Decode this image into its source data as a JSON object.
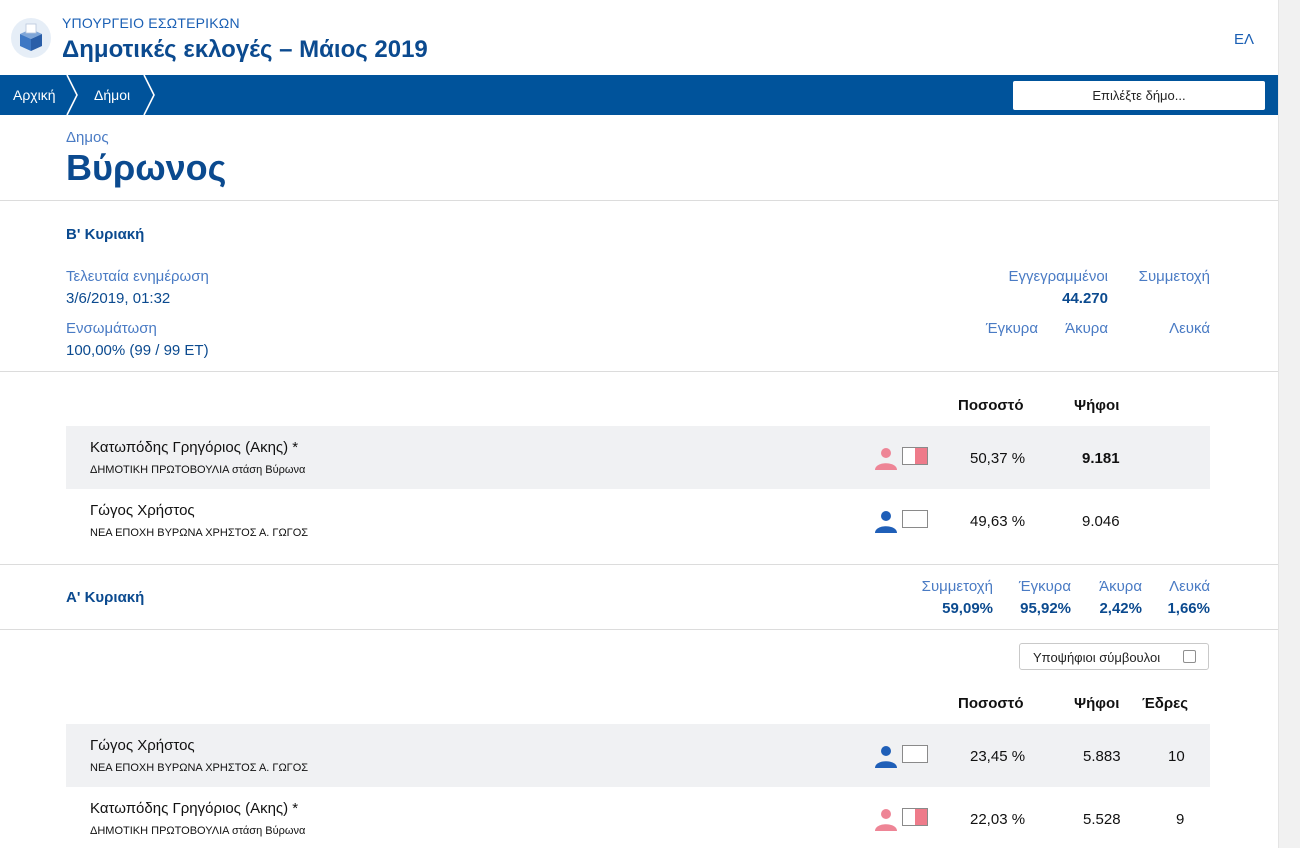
{
  "header": {
    "ministry": "ΥΠΟΥΡΓΕΙΟ ΕΣΩΤΕΡΙΚΩΝ",
    "title": "Δημοτικές εκλογές – Μάιος 2019",
    "lang": "ΕΛ"
  },
  "nav": {
    "home": "Αρχική",
    "municipalities": "Δήμοι",
    "select_placeholder": "Επιλέξτε δήμο..."
  },
  "municipality": {
    "label": "Δημος",
    "name": "Βύρωνος"
  },
  "round_b": {
    "title": "Β' Κυριακή",
    "last_update_label": "Τελευταία ενημέρωση",
    "last_update_value": "3/6/2019, 01:32",
    "integration_label": "Ενσωμάτωση",
    "integration_value": "100,00% (99 / 99 ΕΤ)",
    "registered_label": "Εγγεγραμμένοι",
    "registered_value": "44.270",
    "turnout_label": "Συμμετοχή",
    "valid_label": "Έγκυρα",
    "invalid_label": "Άκυρα",
    "blank_label": "Λευκά",
    "col_percent": "Ποσοστό",
    "col_votes": "Ψήφοι",
    "candidates": [
      {
        "name": "Κατωπόδης Γρηγόριος (Ακης) *",
        "party": "ΔΗΜΟΤΙΚΗ ΠΡΩΤΟΒΟΥΛΙΑ στάση Βύρωνα",
        "percent": "50,37 %",
        "votes": "9.181",
        "icon": "person-pink-icon",
        "color": "#ee8596",
        "bar_fraction": 0.5037
      },
      {
        "name": "Γώγος Χρήστος",
        "party": "ΝΕΑ ΕΠΟΧΗ ΒΥΡΩΝΑ ΧΡΗΣΤΟΣ Α. ΓΩΓΟΣ",
        "percent": "49,63 %",
        "votes": "9.046",
        "icon": "person-blue-icon",
        "color": "#1f5fb8",
        "bar_fraction": 0.0
      }
    ]
  },
  "round_a": {
    "title": "Α' Κυριακή",
    "turnout_label": "Συμμετοχή",
    "turnout_value": "59,09%",
    "valid_label": "Έγκυρα",
    "valid_value": "95,92%",
    "invalid_label": "Άκυρα",
    "invalid_value": "2,42%",
    "blank_label": "Λευκά",
    "blank_value": "1,66%",
    "councillors_label": "Υποψήφιοι σύμβουλοι",
    "col_percent": "Ποσοστό",
    "col_votes": "Ψήφοι",
    "col_seats": "Έδρες",
    "candidates": [
      {
        "name": "Γώγος Χρήστος",
        "party": "ΝΕΑ ΕΠΟΧΗ ΒΥΡΩΝΑ ΧΡΗΣΤΟΣ Α. ΓΩΓΟΣ",
        "percent": "23,45 %",
        "votes": "5.883",
        "seats": "10",
        "icon": "person-blue-icon",
        "color": "#1f5fb8",
        "bar_fraction": 0.0
      },
      {
        "name": "Κατωπόδης Γρηγόριος (Ακης) *",
        "party": "ΔΗΜΟΤΙΚΗ ΠΡΩΤΟΒΟΥΛΙΑ στάση Βύρωνα",
        "percent": "22,03 %",
        "votes": "5.528",
        "seats": "9",
        "icon": "person-pink-icon",
        "color": "#ee8596",
        "bar_fraction": 0.5037
      }
    ]
  }
}
